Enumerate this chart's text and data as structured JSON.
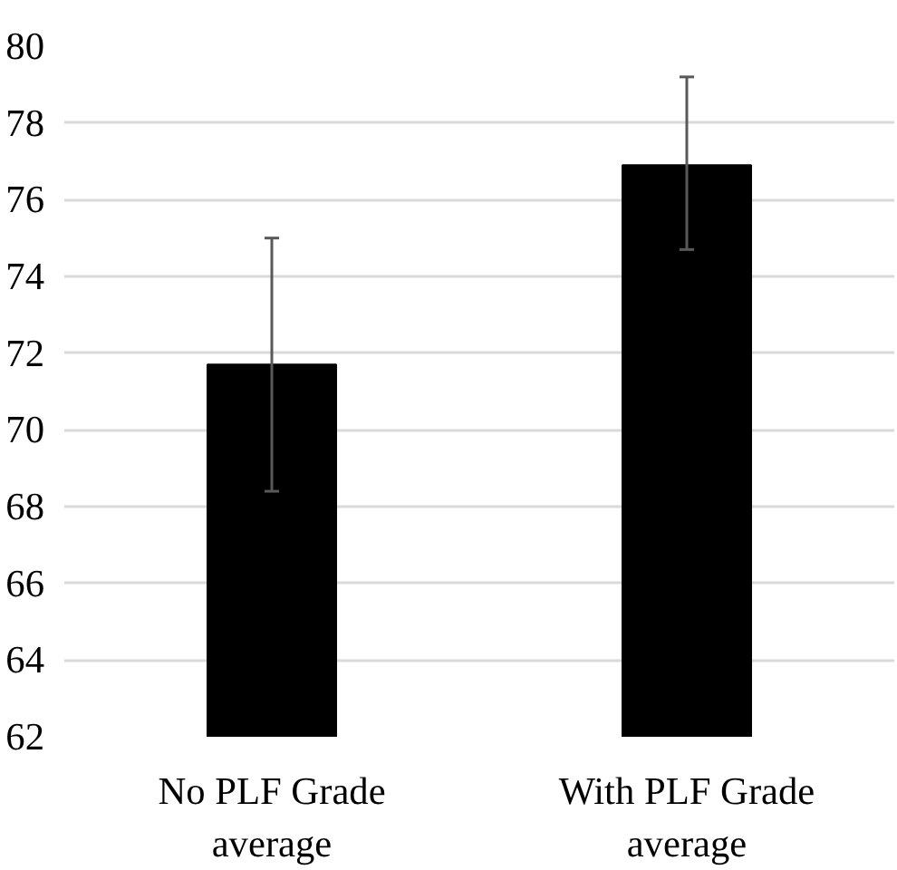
{
  "chart_data": {
    "type": "bar",
    "categories": [
      "No PLF Grade average",
      "With PLF Grade average"
    ],
    "values": [
      71.7,
      76.9
    ],
    "errors": [
      [
        68.4,
        75.0
      ],
      [
        74.7,
        79.2
      ]
    ],
    "color": "#000000",
    "ylim": [
      62,
      80
    ],
    "yticks": [
      62,
      64,
      66,
      68,
      70,
      72,
      74,
      76,
      78,
      80
    ],
    "grid": "y"
  }
}
